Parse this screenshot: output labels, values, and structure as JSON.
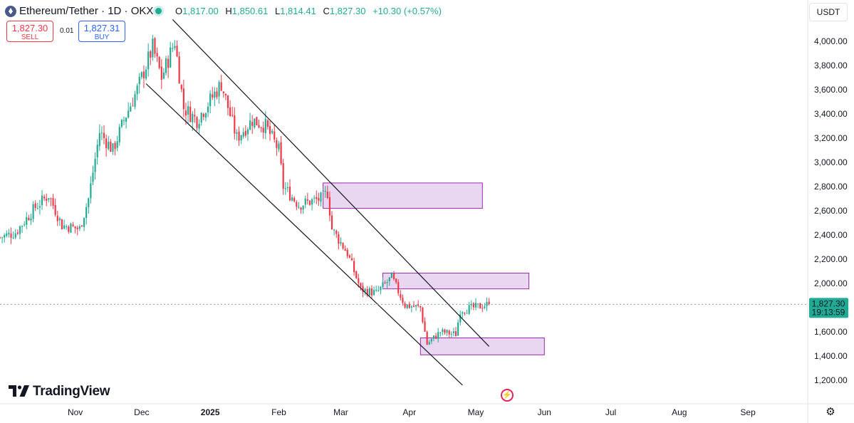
{
  "header": {
    "symbol": "Ethereum/Tether · 1D · OKX",
    "ohlc": [
      {
        "key": "O",
        "value": "1,817.00"
      },
      {
        "key": "H",
        "value": "1,850.61"
      },
      {
        "key": "L",
        "value": "1,814.41"
      },
      {
        "key": "C",
        "value": "1,827.30"
      }
    ],
    "change": "+10.30 (+0.57%)"
  },
  "trade": {
    "sell_price": "1,827.30",
    "sell_label": "SELL",
    "spread": "0.01",
    "buy_price": "1,827.31",
    "buy_label": "BUY"
  },
  "currency": "USDT",
  "brand": "TradingView",
  "price_label": {
    "value": "1,827.30",
    "countdown": "19:13:59"
  },
  "colors": {
    "up": "#22ab94",
    "down": "#f23645",
    "zone_fill": "#e5d0ee",
    "zone_stroke": "#9c27b0",
    "accent": "#22ab94"
  },
  "chart_data": {
    "type": "candlestick",
    "ylim": [
      1100,
      4200
    ],
    "y_ticks": [
      1200,
      1400,
      1600,
      1800,
      2000,
      2200,
      2400,
      2600,
      2800,
      3000,
      3200,
      3400,
      3600,
      3800,
      4000
    ],
    "y_tick_labels": [
      "1,200.00",
      "1,400.00",
      "1,600.00",
      "2,000.00",
      "2,200.00",
      "2,400.00",
      "2,600.00",
      "2,800.00",
      "3,000.00",
      "3,200.00",
      "3,400.00",
      "3,600.00",
      "3,800.00",
      "4,000.00"
    ],
    "y_tick_values": [
      1200,
      1400,
      1600,
      2000,
      2200,
      2400,
      2600,
      2800,
      3000,
      3200,
      3400,
      3600,
      3800,
      4000
    ],
    "x_ticks": [
      {
        "label": "Nov",
        "date": "2024-11-01"
      },
      {
        "label": "Dec",
        "date": "2024-12-01"
      },
      {
        "label": "2025",
        "date": "2025-01-01",
        "bold": true
      },
      {
        "label": "Feb",
        "date": "2025-02-01"
      },
      {
        "label": "Mar",
        "date": "2025-03-01"
      },
      {
        "label": "Apr",
        "date": "2025-04-01"
      },
      {
        "label": "May",
        "date": "2025-05-01"
      },
      {
        "label": "Jun",
        "date": "2025-06-01"
      },
      {
        "label": "Jul",
        "date": "2025-07-01"
      },
      {
        "label": "Aug",
        "date": "2025-08-01"
      },
      {
        "label": "Sep",
        "date": "2025-09-01"
      }
    ],
    "x_range": [
      "2024-09-28",
      "2025-09-28"
    ],
    "last_price": 1827.3,
    "key_points": [
      {
        "date": "2024-09-28",
        "price": 2380
      },
      {
        "date": "2024-10-05",
        "price": 2420
      },
      {
        "date": "2024-10-14",
        "price": 2630
      },
      {
        "date": "2024-10-20",
        "price": 2730
      },
      {
        "date": "2024-10-26",
        "price": 2480
      },
      {
        "date": "2024-11-03",
        "price": 2450
      },
      {
        "date": "2024-11-07",
        "price": 2700
      },
      {
        "date": "2024-11-12",
        "price": 3250
      },
      {
        "date": "2024-11-18",
        "price": 3100
      },
      {
        "date": "2024-11-23",
        "price": 3350
      },
      {
        "date": "2024-11-29",
        "price": 3600
      },
      {
        "date": "2024-12-06",
        "price": 3950
      },
      {
        "date": "2024-12-10",
        "price": 3700
      },
      {
        "date": "2024-12-16",
        "price": 4000
      },
      {
        "date": "2024-12-20",
        "price": 3450
      },
      {
        "date": "2024-12-26",
        "price": 3350
      },
      {
        "date": "2025-01-06",
        "price": 3650
      },
      {
        "date": "2025-01-13",
        "price": 3200
      },
      {
        "date": "2025-01-20",
        "price": 3350
      },
      {
        "date": "2025-01-26",
        "price": 3300
      },
      {
        "date": "2025-02-01",
        "price": 3100
      },
      {
        "date": "2025-02-03",
        "price": 2800
      },
      {
        "date": "2025-02-10",
        "price": 2650
      },
      {
        "date": "2025-02-20",
        "price": 2700
      },
      {
        "date": "2025-02-23",
        "price": 2750
      },
      {
        "date": "2025-02-25",
        "price": 2450
      },
      {
        "date": "2025-03-04",
        "price": 2250
      },
      {
        "date": "2025-03-10",
        "price": 1950
      },
      {
        "date": "2025-03-17",
        "price": 1920
      },
      {
        "date": "2025-03-24",
        "price": 2050
      },
      {
        "date": "2025-03-30",
        "price": 1820
      },
      {
        "date": "2025-04-06",
        "price": 1800
      },
      {
        "date": "2025-04-09",
        "price": 1500
      },
      {
        "date": "2025-04-15",
        "price": 1600
      },
      {
        "date": "2025-04-22",
        "price": 1580
      },
      {
        "date": "2025-04-24",
        "price": 1780
      },
      {
        "date": "2025-04-30",
        "price": 1800
      },
      {
        "date": "2025-05-07",
        "price": 1827.3
      }
    ],
    "trendlines": [
      {
        "from": {
          "date": "2024-12-15",
          "price": 4180
        },
        "to": {
          "date": "2025-05-07",
          "price": 1480
        }
      },
      {
        "from": {
          "date": "2024-12-03",
          "price": 3650
        },
        "to": {
          "date": "2025-04-25",
          "price": 1160
        }
      }
    ],
    "zones": [
      {
        "start": "2025-02-21",
        "end": "2025-05-04",
        "top": 2830,
        "bottom": 2620
      },
      {
        "start": "2025-03-20",
        "end": "2025-05-25",
        "top": 2085,
        "bottom": 1955
      },
      {
        "start": "2025-04-06",
        "end": "2025-06-01",
        "top": 1550,
        "bottom": 1410
      }
    ]
  }
}
